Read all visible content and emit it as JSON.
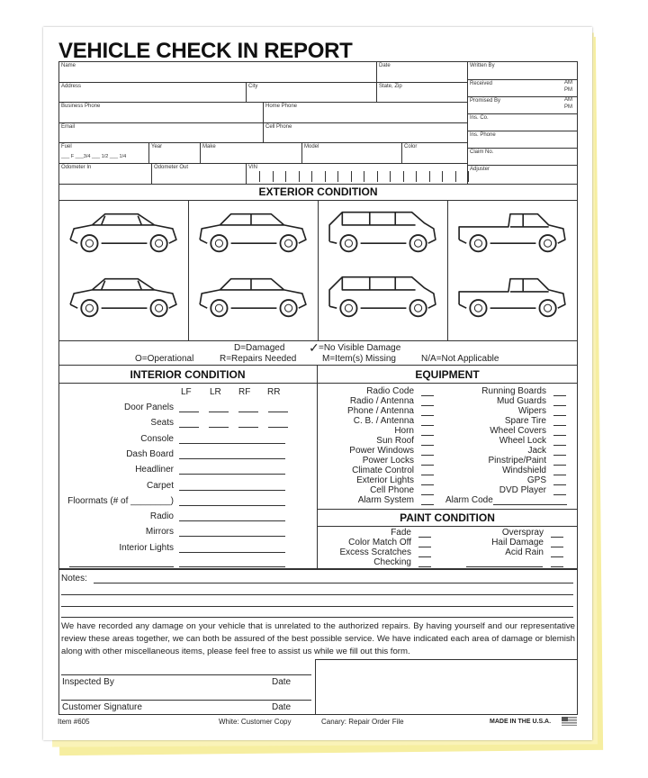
{
  "title": "VEHICLE CHECK IN REPORT",
  "fields": {
    "name": "Name",
    "date": "Date",
    "address": "Address",
    "city": "City",
    "state_zip": "State, Zip",
    "business_phone": "Business Phone",
    "home_phone": "Home Phone",
    "email": "Email",
    "cell_phone": "Cell Phone",
    "fuel": "Fuel",
    "fuel_levels": "___ F  ___3/4  ___ 1/2  ___ 1/4",
    "year": "Year",
    "make": "Make",
    "model": "Model",
    "color": "Color",
    "odometer_in": "Odometer In",
    "odometer_out": "Odometer Out",
    "vin": "VIN"
  },
  "right_fields": {
    "written_by": "Written By",
    "received": "Received",
    "promised_by": "Promised By",
    "am": "AM",
    "pm": "PM",
    "ins_co": "Ins. Co.",
    "ins_phone": "Ins. Phone",
    "claim_no": "Claim No.",
    "adjuster": "Adjuster"
  },
  "exterior": {
    "heading": "EXTERIOR CONDITION",
    "cars": [
      "coupe",
      "sedan",
      "minivan",
      "pickup-truck",
      "coupe",
      "sedan",
      "minivan",
      "pickup-truck"
    ]
  },
  "legend": {
    "damaged": "D=Damaged",
    "no_damage": "=No Visible Damage",
    "operational": "O=Operational",
    "repairs": "R=Repairs Needed",
    "missing": "M=Item(s) Missing",
    "na": "N/A=Not Applicable",
    "check": "✓"
  },
  "interior": {
    "heading": "INTERIOR CONDITION",
    "cols": [
      "LF",
      "LR",
      "RF",
      "RR"
    ],
    "items": [
      "Door Panels",
      "Seats",
      "Console",
      "Dash Board",
      "Headliner",
      "Carpet",
      "Floormats (# of ________)",
      "Radio",
      "Mirrors",
      "Interior Lights"
    ]
  },
  "equipment": {
    "heading": "EQUIPMENT",
    "left": [
      "Radio Code",
      "Radio / Antenna",
      "Phone / Antenna",
      "C. B. / Antenna",
      "Horn",
      "Sun Roof",
      "Power Windows",
      "Power Locks",
      "Climate Control",
      "Exterior Lights",
      "Cell Phone",
      "Alarm System"
    ],
    "right": [
      "Running Boards",
      "Mud Guards",
      "Wipers",
      "Spare Tire",
      "Wheel Covers",
      "Wheel Lock",
      "Jack",
      "Pinstripe/Paint",
      "Windshield",
      "GPS",
      "DVD Player"
    ],
    "alarm_code": "Alarm Code"
  },
  "paint": {
    "heading": "PAINT CONDITION",
    "left": [
      "Fade",
      "Color Match Off",
      "Excess Scratches",
      "Checking"
    ],
    "right": [
      "Overspray",
      "Hail Damage",
      "Acid Rain"
    ]
  },
  "notes": {
    "label": "Notes:"
  },
  "disclaimer": "We have recorded any damage on your vehicle that is unrelated to the authorized repairs.  By having yourself and our representative review these areas together, we can both be assured of the best possible service.  We have indicated each area of damage or blemish along with other miscellaneous items, please feel free to assist us while we fill out this form.",
  "signatures": {
    "inspected_by": "Inspected By",
    "customer_signature": "Customer Signature",
    "date": "Date"
  },
  "footer": {
    "item": "Item #605",
    "white": "White:  Customer Copy",
    "canary": "Canary:  Repair Order File",
    "made_in": "MADE IN THE U.S.A."
  }
}
